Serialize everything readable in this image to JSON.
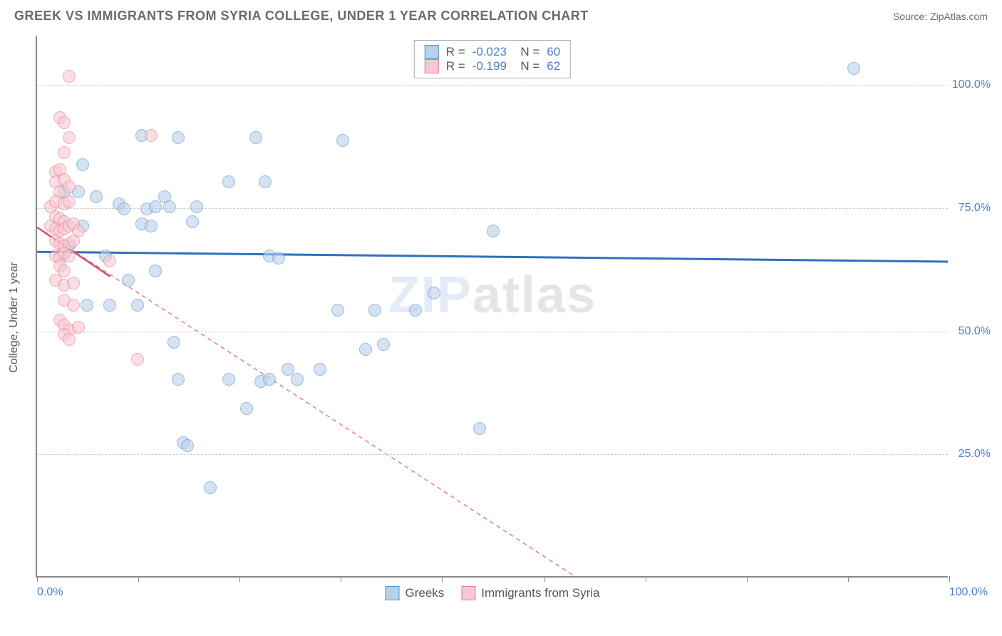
{
  "title": "GREEK VS IMMIGRANTS FROM SYRIA COLLEGE, UNDER 1 YEAR CORRELATION CHART",
  "source": "Source: ZipAtlas.com",
  "y_axis_label": "College, Under 1 year",
  "watermark_a": "ZIP",
  "watermark_b": "atlas",
  "chart": {
    "type": "scatter",
    "xlim": [
      0,
      100
    ],
    "ylim": [
      0,
      110
    ],
    "x_ticks": [
      0,
      11.1,
      22.2,
      33.3,
      44.4,
      55.6,
      66.7,
      77.8,
      88.9,
      100
    ],
    "y_gridlines": [
      25,
      50,
      75,
      100
    ],
    "y_tick_labels": [
      "25.0%",
      "50.0%",
      "75.0%",
      "100.0%"
    ],
    "x_min_label": "0.0%",
    "x_max_label": "100.0%",
    "background_color": "#ffffff",
    "grid_color": "#cccccc",
    "point_radius": 9,
    "series": [
      {
        "name": "Greeks",
        "fill": "#b9d0ea",
        "stroke": "#5a8fc9",
        "fill_opacity": 0.6,
        "R": "-0.023",
        "N": "60",
        "trend": {
          "x1": 0,
          "y1": 66,
          "x2": 100,
          "y2": 64,
          "color": "#2f6fbf",
          "width": 3,
          "dash": "none"
        },
        "points": [
          [
            89.5,
            103
          ],
          [
            11.5,
            89.5
          ],
          [
            15.5,
            89
          ],
          [
            24,
            89
          ],
          [
            33.5,
            88.5
          ],
          [
            5,
            83.5
          ],
          [
            21,
            80
          ],
          [
            25,
            80
          ],
          [
            3,
            78
          ],
          [
            4.5,
            78
          ],
          [
            6.5,
            77
          ],
          [
            9,
            75.5
          ],
          [
            9.5,
            74.5
          ],
          [
            12,
            74.5
          ],
          [
            14,
            77
          ],
          [
            13,
            75
          ],
          [
            14.5,
            75
          ],
          [
            17.5,
            75
          ],
          [
            5,
            71
          ],
          [
            11.5,
            71.5
          ],
          [
            12.5,
            71
          ],
          [
            17,
            72
          ],
          [
            50,
            70
          ],
          [
            3.5,
            67
          ],
          [
            3,
            65.5
          ],
          [
            7.5,
            65
          ],
          [
            25.5,
            65
          ],
          [
            26.5,
            64.5
          ],
          [
            10,
            60
          ],
          [
            13,
            62
          ],
          [
            43.5,
            57.5
          ],
          [
            5.5,
            55
          ],
          [
            8,
            55
          ],
          [
            11,
            55
          ],
          [
            33,
            54
          ],
          [
            37,
            54
          ],
          [
            41.5,
            54
          ],
          [
            15,
            47.5
          ],
          [
            36,
            46
          ],
          [
            38,
            47
          ],
          [
            15.5,
            40
          ],
          [
            21,
            40
          ],
          [
            24.5,
            39.5
          ],
          [
            25.5,
            40
          ],
          [
            27.5,
            42
          ],
          [
            28.5,
            40
          ],
          [
            31,
            42
          ],
          [
            23,
            34
          ],
          [
            48.5,
            30
          ],
          [
            16,
            27
          ],
          [
            16.5,
            26.5
          ],
          [
            19,
            18
          ]
        ]
      },
      {
        "name": "Immigrants from Syria",
        "fill": "#f7c9d2",
        "stroke": "#e77a92",
        "fill_opacity": 0.6,
        "R": "-0.199",
        "N": "62",
        "trend": {
          "x1": 0,
          "y1": 71,
          "x2": 59,
          "y2": 0,
          "color": "#e77a92",
          "width": 1.5,
          "dash": "6,5"
        },
        "solid_line": {
          "x1": 0,
          "y1": 71,
          "x2": 8,
          "y2": 61,
          "color": "#e04a6b",
          "width": 2.5
        },
        "points": [
          [
            3.5,
            101.5
          ],
          [
            2.5,
            93
          ],
          [
            3,
            92
          ],
          [
            3.5,
            89
          ],
          [
            12.5,
            89.5
          ],
          [
            3,
            86
          ],
          [
            2,
            82
          ],
          [
            2.5,
            82.5
          ],
          [
            2,
            80
          ],
          [
            3,
            80.5
          ],
          [
            2.5,
            78
          ],
          [
            3.5,
            79
          ],
          [
            1.5,
            75
          ],
          [
            2,
            76
          ],
          [
            3,
            75.5
          ],
          [
            3.5,
            76
          ],
          [
            2,
            73
          ],
          [
            2.5,
            72.5
          ],
          [
            3,
            72
          ],
          [
            1.5,
            71
          ],
          [
            2,
            70.5
          ],
          [
            2.5,
            70
          ],
          [
            3,
            70.5
          ],
          [
            3.5,
            71
          ],
          [
            4,
            71.5
          ],
          [
            4.5,
            70
          ],
          [
            2,
            68
          ],
          [
            2.5,
            67.5
          ],
          [
            3,
            67
          ],
          [
            3.5,
            67.5
          ],
          [
            4,
            68
          ],
          [
            2,
            65
          ],
          [
            2.5,
            64.5
          ],
          [
            3,
            65.5
          ],
          [
            3.5,
            65
          ],
          [
            2.5,
            63
          ],
          [
            3,
            62
          ],
          [
            8,
            64
          ],
          [
            2,
            60
          ],
          [
            3,
            59
          ],
          [
            4,
            59.5
          ],
          [
            3,
            56
          ],
          [
            4,
            55
          ],
          [
            2.5,
            52
          ],
          [
            3,
            51
          ],
          [
            3.5,
            50
          ],
          [
            4.5,
            50.5
          ],
          [
            3,
            49
          ],
          [
            3.5,
            48
          ],
          [
            11,
            44
          ]
        ]
      }
    ]
  },
  "legend_bottom": {
    "items": [
      {
        "label": "Greeks",
        "fill": "#b9d0ea",
        "stroke": "#5a8fc9"
      },
      {
        "label": "Immigrants from Syria",
        "fill": "#f7c9d2",
        "stroke": "#e77a92"
      }
    ]
  }
}
